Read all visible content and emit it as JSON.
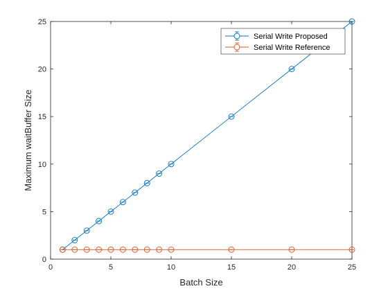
{
  "chart_data": {
    "type": "line",
    "title": "",
    "xlabel": "Batch Size",
    "ylabel": "Maximum waitBuffer Size",
    "xlim": [
      0,
      25
    ],
    "ylim": [
      0,
      25
    ],
    "xticks": [
      0,
      5,
      10,
      15,
      20,
      25
    ],
    "yticks": [
      0,
      5,
      10,
      15,
      20,
      25
    ],
    "grid": false,
    "legend_position": "top-right",
    "x": [
      1,
      2,
      3,
      4,
      5,
      6,
      7,
      8,
      9,
      10,
      15,
      20,
      25
    ],
    "series": [
      {
        "name": "Serial Write Proposed",
        "color": "#0072BD",
        "marker": "circle",
        "error_bars": true,
        "values": [
          1,
          2,
          3,
          4,
          5,
          6,
          7,
          8,
          9,
          10,
          15,
          20,
          25
        ]
      },
      {
        "name": "Serial Write Reference",
        "color": "#D95319",
        "marker": "circle",
        "error_bars": true,
        "values": [
          1,
          1,
          1,
          1,
          1,
          1,
          1,
          1,
          1,
          1,
          1,
          1,
          1
        ]
      }
    ]
  }
}
